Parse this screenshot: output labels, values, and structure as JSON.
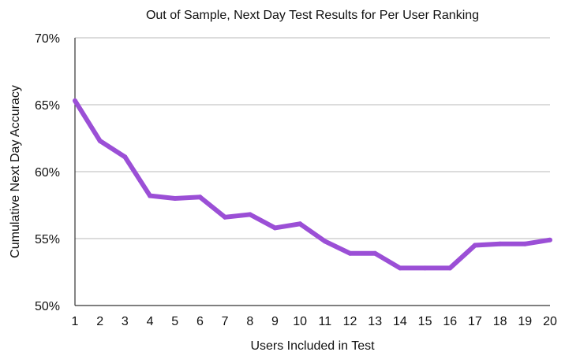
{
  "chart_data": {
    "type": "line",
    "title": "Out of Sample, Next Day Test Results for Per User Ranking",
    "xlabel": "Users Included in Test",
    "ylabel": "Cumulative Next Day Accuracy",
    "x": [
      1,
      2,
      3,
      4,
      5,
      6,
      7,
      8,
      9,
      10,
      11,
      12,
      13,
      14,
      15,
      16,
      17,
      18,
      19,
      20
    ],
    "x_tick_labels": [
      "1",
      "2",
      "3",
      "4",
      "5",
      "6",
      "7",
      "8",
      "9",
      "10",
      "11",
      "12",
      "13",
      "14",
      "15",
      "16",
      "17",
      "18",
      "19",
      "20"
    ],
    "y_ticks": [
      0.5,
      0.55,
      0.6,
      0.65,
      0.7
    ],
    "y_tick_labels": [
      "50%",
      "55%",
      "60%",
      "65%",
      "70%"
    ],
    "ylim": [
      0.5,
      0.7
    ],
    "grid": "horizontal",
    "legend": "none",
    "series": [
      {
        "values": [
          0.653,
          0.623,
          0.611,
          0.582,
          0.58,
          0.581,
          0.566,
          0.568,
          0.558,
          0.561,
          0.548,
          0.539,
          0.539,
          0.528,
          0.528,
          0.528,
          0.545,
          0.546,
          0.546,
          0.549
        ],
        "color": "#9b4fd6"
      }
    ]
  }
}
